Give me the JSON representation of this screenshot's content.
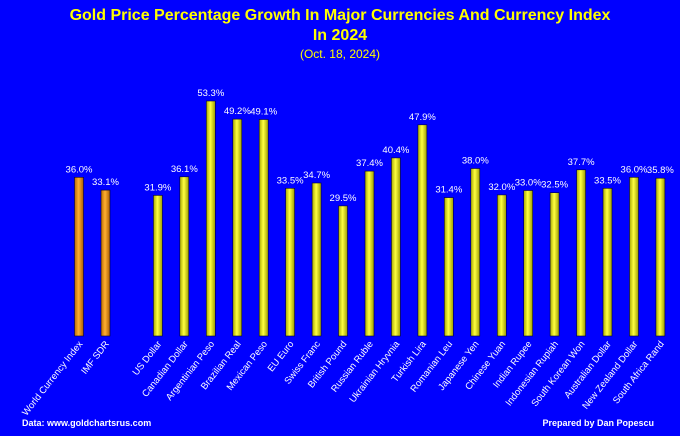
{
  "title": {
    "line1": "Gold Price Percentage Growth In Major Currencies And Currency Index",
    "line2": "In 2024",
    "subtitle": "(Oct. 18, 2024)"
  },
  "footer": {
    "source": "Data: www.goldchartsrus.com",
    "credit": "Prepared by Dan Popescu"
  },
  "colors": {
    "background": "#0000ff",
    "title": "#ffff00",
    "index_bars": "#f0a020",
    "currency_bars": "#f0f020",
    "labels": "#ffffff"
  },
  "chart_data": {
    "type": "bar",
    "title": "Gold Price Percentage Growth In Major Currencies And Currency Index In 2024",
    "subtitle": "(Oct. 18, 2024)",
    "xlabel": "",
    "ylabel": "",
    "unit": "%",
    "ylim": [
      0,
      53.3
    ],
    "grid": false,
    "categories": [
      "World Currency Index",
      "IMF SDR",
      "US Dollar",
      "Canadian Dollar",
      "Argentinian Peso",
      "Brazilian Real",
      "Mexican Peso",
      "EU Euro",
      "Swiss Franc",
      "British Pound",
      "Russian Ruble",
      "Ukrainian Hryvnia",
      "Turkish Lira",
      "Romanian Leu",
      "Japanese Yen",
      "Chinese Yuan",
      "Indian Rupee",
      "Indonesian Rupiah",
      "South Korean Won",
      "Australian Dollar",
      "New Zealand Dollar",
      "South Africa Rand"
    ],
    "values": [
      36.0,
      33.1,
      31.9,
      36.1,
      53.3,
      49.2,
      49.1,
      33.5,
      34.7,
      29.5,
      37.4,
      40.4,
      47.9,
      31.4,
      38.0,
      32.0,
      33.0,
      32.5,
      37.7,
      33.5,
      36.0,
      35.8
    ],
    "value_labels": [
      "36.0%",
      "33.1%",
      "31.9%",
      "36.1%",
      "53.3%",
      "49.2%",
      "49.1%",
      "33.5%",
      "34.7%",
      "29.5%",
      "37.4%",
      "40.4%",
      "47.9%",
      "31.4%",
      "38.0%",
      "32.0%",
      "33.0%",
      "32.5%",
      "37.7%",
      "33.5%",
      "36.0%",
      "35.8%"
    ],
    "groups": [
      "index",
      "index",
      "currency",
      "currency",
      "currency",
      "currency",
      "currency",
      "currency",
      "currency",
      "currency",
      "currency",
      "currency",
      "currency",
      "currency",
      "currency",
      "currency",
      "currency",
      "currency",
      "currency",
      "currency",
      "currency",
      "currency"
    ]
  }
}
